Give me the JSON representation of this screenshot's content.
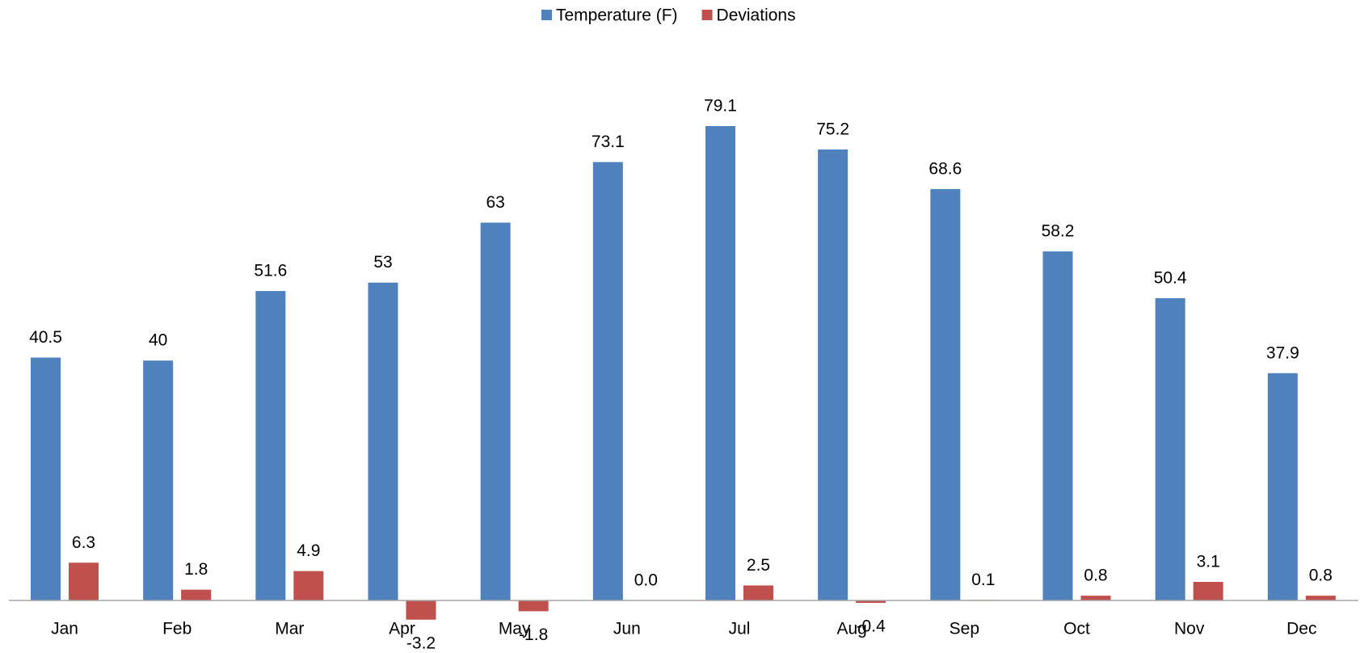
{
  "chart_data": {
    "type": "bar",
    "categories": [
      "Jan",
      "Feb",
      "Mar",
      "Apr",
      "May",
      "Jun",
      "Jul",
      "Aug",
      "Sep",
      "Oct",
      "Nov",
      "Dec"
    ],
    "series": [
      {
        "name": "Temperature (F)",
        "color": "#4f81bd",
        "values": [
          40.5,
          40,
          51.6,
          53,
          63,
          73.1,
          79.1,
          75.2,
          68.6,
          58.2,
          50.4,
          37.9
        ]
      },
      {
        "name": "Deviations",
        "color": "#c0504d",
        "values": [
          6.3,
          1.8,
          4.9,
          -3.2,
          -1.8,
          0,
          2.5,
          -0.4,
          0.1,
          0.8,
          3.1,
          0.8
        ],
        "value_labels": [
          "6.3",
          "1.8",
          "4.9",
          "-3.2",
          "-1.8",
          "0.0",
          "2.5",
          "-0.4",
          "0.1",
          "0.8",
          "3.1",
          "0.8"
        ]
      }
    ],
    "legend": "top"
  }
}
